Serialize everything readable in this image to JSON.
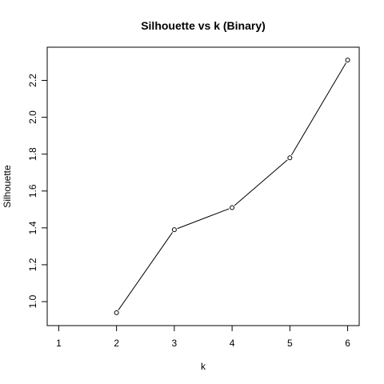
{
  "chart_data": {
    "type": "line",
    "title": "Silhouette vs k (Binary)",
    "xlabel": "k",
    "ylabel": "Silhouette",
    "x": [
      2,
      3,
      4,
      5,
      6
    ],
    "y": [
      0.94,
      1.39,
      1.51,
      1.78,
      2.31
    ],
    "xlim": [
      0.8,
      6.2
    ],
    "ylim": [
      0.87,
      2.38
    ],
    "xticks": [
      1,
      2,
      3,
      4,
      5,
      6
    ],
    "xtick_labels": [
      "1",
      "2",
      "3",
      "4",
      "5",
      "6"
    ],
    "yticks": [
      1.0,
      1.2,
      1.4,
      1.6,
      1.8,
      2.0,
      2.2
    ],
    "ytick_labels": [
      "1.0",
      "1.2",
      "1.4",
      "1.6",
      "1.8",
      "2.0",
      "2.2"
    ],
    "grid": false,
    "marker": "open-circle",
    "line_color": "#000000"
  }
}
